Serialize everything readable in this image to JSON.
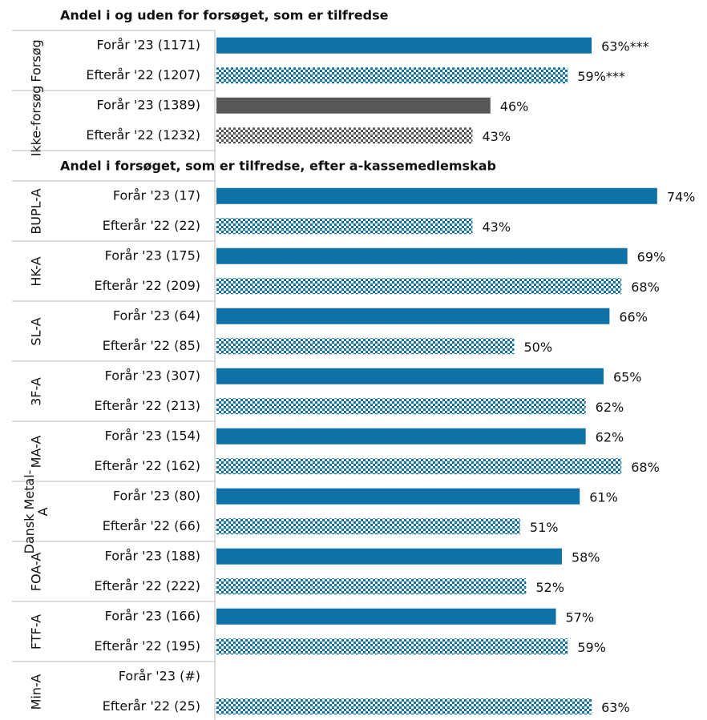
{
  "chart_data": [
    {
      "type": "bar",
      "orientation": "horizontal",
      "title": "Andel i og uden for forsøget, som er tilfredse",
      "patterns": [
        "solid",
        "checker"
      ],
      "groups": [
        {
          "name": "Forsøg",
          "color": "#0f71a6",
          "categories": [
            "Forår '23 (1171)",
            "Efterår '22 (1207)"
          ],
          "values": [
            63,
            59
          ],
          "value_labels": [
            "63%***",
            "59%***"
          ]
        },
        {
          "name": "Ikke-forsøg",
          "color": "#575757",
          "categories": [
            "Forår '23 (1389)",
            "Efterår '22 (1232)"
          ],
          "values": [
            46,
            43
          ],
          "value_labels": [
            "46%",
            "43%"
          ]
        }
      ]
    },
    {
      "type": "bar",
      "orientation": "horizontal",
      "title": "Andel i forsøget, som er tilfredse, efter a-kassemedlemskab",
      "patterns": [
        "solid",
        "checker"
      ],
      "groups": [
        {
          "name": "BUPL-A",
          "color": "#0f71a6",
          "categories": [
            "Forår '23 (17)",
            "Efterår '22 (22)"
          ],
          "values": [
            74,
            43
          ],
          "value_labels": [
            "74%",
            "43%"
          ]
        },
        {
          "name": "HK-A",
          "color": "#0f71a6",
          "categories": [
            "Forår '23 (175)",
            "Efterår '22 (209)"
          ],
          "values": [
            69,
            68
          ],
          "value_labels": [
            "69%",
            "68%"
          ]
        },
        {
          "name": "SL-A",
          "color": "#0f71a6",
          "categories": [
            "Forår '23 (64)",
            "Efterår '22 (85)"
          ],
          "values": [
            66,
            50
          ],
          "value_labels": [
            "66%",
            "50%"
          ]
        },
        {
          "name": "3F-A",
          "color": "#0f71a6",
          "categories": [
            "Forår '23 (307)",
            "Efterår '22 (213)"
          ],
          "values": [
            65,
            62
          ],
          "value_labels": [
            "65%",
            "62%"
          ]
        },
        {
          "name": "MA-A",
          "color": "#0f71a6",
          "categories": [
            "Forår '23 (154)",
            "Efterår '22 (162)"
          ],
          "values": [
            62,
            68
          ],
          "value_labels": [
            "62%",
            "68%"
          ]
        },
        {
          "name": "Dansk Metal-A",
          "color": "#0f71a6",
          "categories": [
            "Forår '23 (80)",
            "Efterår '22 (66)"
          ],
          "values": [
            61,
            51
          ],
          "value_labels": [
            "61%",
            "51%"
          ]
        },
        {
          "name": "FOA-A",
          "color": "#0f71a6",
          "categories": [
            "Forår '23 (188)",
            "Efterår '22 (222)"
          ],
          "values": [
            58,
            52
          ],
          "value_labels": [
            "58%",
            "52%"
          ]
        },
        {
          "name": "FTF-A",
          "color": "#0f71a6",
          "categories": [
            "Forår '23 (166)",
            "Efterår '22 (195)"
          ],
          "values": [
            57,
            59
          ],
          "value_labels": [
            "57%",
            "59%"
          ]
        },
        {
          "name": "Min-A",
          "color": "#0f71a6",
          "categories": [
            "Forår '23 (#)",
            "Efterår '22 (25)"
          ],
          "values": [
            null,
            63
          ],
          "value_labels": [
            null,
            "63%"
          ]
        }
      ]
    }
  ]
}
